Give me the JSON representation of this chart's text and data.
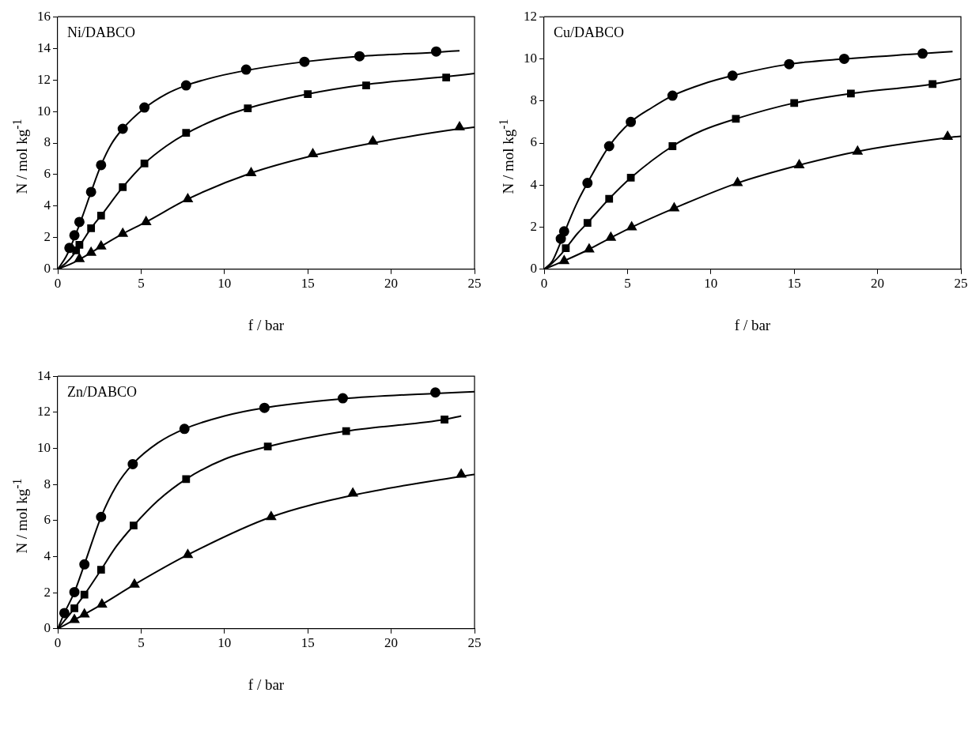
{
  "chart_data": [
    {
      "type": "scatter",
      "xlabel": "f / bar",
      "ylabel": "N / mol kg$^{-1}$",
      "annotations": [
        "Ni/DABCO"
      ],
      "xlim": [
        0,
        25
      ],
      "xticks": [
        0,
        5,
        10,
        15,
        20,
        25
      ],
      "ylim": [
        0,
        16
      ],
      "yticks": [
        0,
        2,
        4,
        6,
        8,
        10,
        12,
        14,
        16
      ],
      "grid": false,
      "legend": false,
      "series": [
        {
          "type": "scatter",
          "marker": "circle",
          "color": "#000000",
          "x": [
            0.7,
            1,
            1.3,
            2,
            2.6,
            3.9,
            5.2,
            7.7,
            11.3,
            14.8,
            18.1,
            22.7
          ],
          "values": [
            1.35,
            2.15,
            3.0,
            4.9,
            6.6,
            8.9,
            10.25,
            11.65,
            12.65,
            13.15,
            13.5,
            13.8
          ]
        },
        {
          "type": "scatter",
          "marker": "square",
          "color": "#000000",
          "x": [
            1.1,
            1.3,
            2,
            2.6,
            3.9,
            5.2,
            7.7,
            11.4,
            15,
            18.5,
            23.3
          ],
          "values": [
            1.2,
            1.55,
            2.6,
            3.4,
            5.2,
            6.7,
            8.65,
            10.2,
            11.1,
            11.65,
            12.15
          ]
        },
        {
          "type": "scatter",
          "marker": "triangle",
          "color": "#000000",
          "x": [
            1.3,
            2,
            2.6,
            3.9,
            5.3,
            7.8,
            11.6,
            15.3,
            18.9,
            24.1
          ],
          "values": [
            0.65,
            1.05,
            1.45,
            2.25,
            3.0,
            4.45,
            6.1,
            7.3,
            8.1,
            9.0
          ]
        },
        {
          "type": "line",
          "marker": "none",
          "color": "#000000",
          "x": [
            0,
            0.5,
            1,
            1.5,
            2,
            2.6,
            3.2,
            3.9,
            5.2,
            6.5,
            7.7,
            9.5,
            11.3,
            14.8,
            18.1,
            22.7,
            24.1
          ],
          "values": [
            0,
            0.8,
            2,
            3.4,
            4.9,
            6.6,
            7.9,
            8.9,
            10.2,
            11.1,
            11.65,
            12.2,
            12.6,
            13.15,
            13.5,
            13.75,
            13.85
          ]
        },
        {
          "type": "line",
          "marker": "none",
          "color": "#000000",
          "x": [
            0,
            0.5,
            1,
            1.5,
            2,
            2.6,
            3.9,
            5.2,
            6.5,
            7.7,
            9.5,
            11.4,
            15,
            18.5,
            23.3,
            25
          ],
          "values": [
            0,
            0.4,
            1.0,
            1.8,
            2.6,
            3.4,
            5.2,
            6.7,
            7.8,
            8.6,
            9.5,
            10.2,
            11.1,
            11.7,
            12.2,
            12.4
          ]
        },
        {
          "type": "line",
          "marker": "none",
          "color": "#000000",
          "x": [
            0,
            1,
            2,
            2.6,
            3.9,
            5.3,
            7.8,
            11.6,
            15.3,
            18.9,
            24.1,
            25
          ],
          "values": [
            0,
            0.45,
            1.05,
            1.45,
            2.25,
            3.0,
            4.45,
            6.1,
            7.2,
            8.0,
            8.9,
            9.0
          ]
        }
      ]
    },
    {
      "type": "scatter",
      "xlabel": "f / bar",
      "ylabel": "N / mol kg$^{-1}$",
      "annotations": [
        "Cu/DABCO"
      ],
      "xlim": [
        0,
        25
      ],
      "xticks": [
        0,
        5,
        10,
        15,
        20,
        25
      ],
      "ylim": [
        0,
        12
      ],
      "yticks": [
        0,
        2,
        4,
        6,
        8,
        10,
        12
      ],
      "grid": false,
      "legend": false,
      "series": [
        {
          "type": "scatter",
          "marker": "circle",
          "color": "#000000",
          "x": [
            1.0,
            1.2,
            2.6,
            3.9,
            5.2,
            7.7,
            11.3,
            14.7,
            18.0,
            22.7
          ],
          "values": [
            1.45,
            1.8,
            4.1,
            5.85,
            7.0,
            8.25,
            9.2,
            9.75,
            10.0,
            10.25
          ]
        },
        {
          "type": "scatter",
          "marker": "square",
          "color": "#000000",
          "x": [
            1.3,
            2.6,
            3.9,
            5.2,
            7.7,
            11.5,
            15.0,
            18.4,
            23.3
          ],
          "values": [
            1.0,
            2.2,
            3.35,
            4.35,
            5.85,
            7.15,
            7.9,
            8.35,
            8.8
          ]
        },
        {
          "type": "scatter",
          "marker": "triangle",
          "color": "#000000",
          "x": [
            1.2,
            2.7,
            4.0,
            5.25,
            7.8,
            11.6,
            15.3,
            18.8,
            24.2
          ],
          "values": [
            0.4,
            0.95,
            1.5,
            2.0,
            2.9,
            4.1,
            4.95,
            5.6,
            6.3
          ]
        },
        {
          "type": "line",
          "marker": "none",
          "color": "#000000",
          "x": [
            0,
            0.5,
            1.0,
            1.5,
            2.0,
            2.6,
            3.9,
            5.2,
            6.5,
            7.7,
            9.5,
            11.3,
            14.7,
            18.0,
            22.7,
            24.5
          ],
          "values": [
            0,
            0.4,
            1.3,
            2.3,
            3.2,
            4.1,
            5.85,
            7.0,
            7.7,
            8.25,
            8.8,
            9.2,
            9.75,
            10.0,
            10.25,
            10.35
          ]
        },
        {
          "type": "line",
          "marker": "none",
          "color": "#000000",
          "x": [
            0,
            0.5,
            1.0,
            1.5,
            2.0,
            2.6,
            3.9,
            5.2,
            7.7,
            9.5,
            11.5,
            15.0,
            18.4,
            23.3,
            25
          ],
          "values": [
            0,
            0.3,
            0.7,
            1.2,
            1.7,
            2.2,
            3.35,
            4.35,
            5.85,
            6.6,
            7.15,
            7.9,
            8.35,
            8.8,
            9.05
          ]
        },
        {
          "type": "line",
          "marker": "none",
          "color": "#000000",
          "x": [
            0,
            1.2,
            2.7,
            4.0,
            5.25,
            7.8,
            11.6,
            15.3,
            18.8,
            24.2,
            25
          ],
          "values": [
            0,
            0.4,
            0.95,
            1.5,
            2.0,
            2.9,
            4.1,
            4.95,
            5.6,
            6.25,
            6.32
          ]
        }
      ]
    },
    {
      "type": "scatter",
      "xlabel": "f / bar",
      "ylabel": "N / mol kg$^{-1}$",
      "annotations": [
        "Zn/DABCO"
      ],
      "xlim": [
        0,
        25
      ],
      "xticks": [
        0,
        5,
        10,
        15,
        20,
        25
      ],
      "ylim": [
        0,
        14
      ],
      "yticks": [
        0,
        2,
        4,
        6,
        8,
        10,
        12,
        14
      ],
      "grid": false,
      "legend": false,
      "series": [
        {
          "type": "scatter",
          "marker": "circle",
          "color": "#000000",
          "x": [
            0.4,
            1.0,
            1.6,
            2.6,
            4.5,
            7.6,
            12.4,
            17.1,
            22.65
          ],
          "values": [
            0.87,
            2.03,
            3.57,
            6.2,
            9.13,
            11.08,
            12.25,
            12.78,
            13.1
          ]
        },
        {
          "type": "scatter",
          "marker": "square",
          "color": "#000000",
          "x": [
            1.0,
            1.6,
            2.6,
            4.55,
            7.7,
            12.6,
            17.3,
            23.2
          ],
          "values": [
            1.14,
            1.89,
            3.27,
            5.72,
            8.3,
            10.1,
            10.96,
            11.6
          ]
        },
        {
          "type": "scatter",
          "marker": "triangle",
          "color": "#000000",
          "x": [
            1.0,
            1.6,
            2.65,
            4.6,
            7.8,
            12.8,
            17.7,
            24.2
          ],
          "values": [
            0.5,
            0.8,
            1.35,
            2.45,
            4.1,
            6.2,
            7.5,
            8.56
          ]
        },
        {
          "type": "line",
          "marker": "none",
          "color": "#000000",
          "x": [
            0,
            0.4,
            1.0,
            1.6,
            2.6,
            3.5,
            4.5,
            6.0,
            7.6,
            10.0,
            12.4,
            17.1,
            22.65,
            25
          ],
          "values": [
            0,
            0.87,
            2.03,
            3.57,
            6.2,
            7.9,
            9.13,
            10.3,
            11.08,
            11.8,
            12.25,
            12.75,
            13.05,
            13.14
          ]
        },
        {
          "type": "line",
          "marker": "none",
          "color": "#000000",
          "x": [
            0,
            0.5,
            1.0,
            1.6,
            2.6,
            3.5,
            4.55,
            6.0,
            7.7,
            10.0,
            12.6,
            17.3,
            23.2,
            24.2
          ],
          "values": [
            0,
            0.55,
            1.14,
            1.89,
            3.27,
            4.55,
            5.72,
            7.1,
            8.3,
            9.4,
            10.1,
            10.96,
            11.6,
            11.8
          ]
        },
        {
          "type": "line",
          "marker": "none",
          "color": "#000000",
          "x": [
            0,
            1.0,
            1.6,
            2.65,
            4.6,
            7.8,
            12.8,
            17.7,
            24.2,
            25
          ],
          "values": [
            0,
            0.5,
            0.8,
            1.35,
            2.45,
            4.1,
            6.2,
            7.4,
            8.45,
            8.56
          ]
        }
      ]
    }
  ]
}
